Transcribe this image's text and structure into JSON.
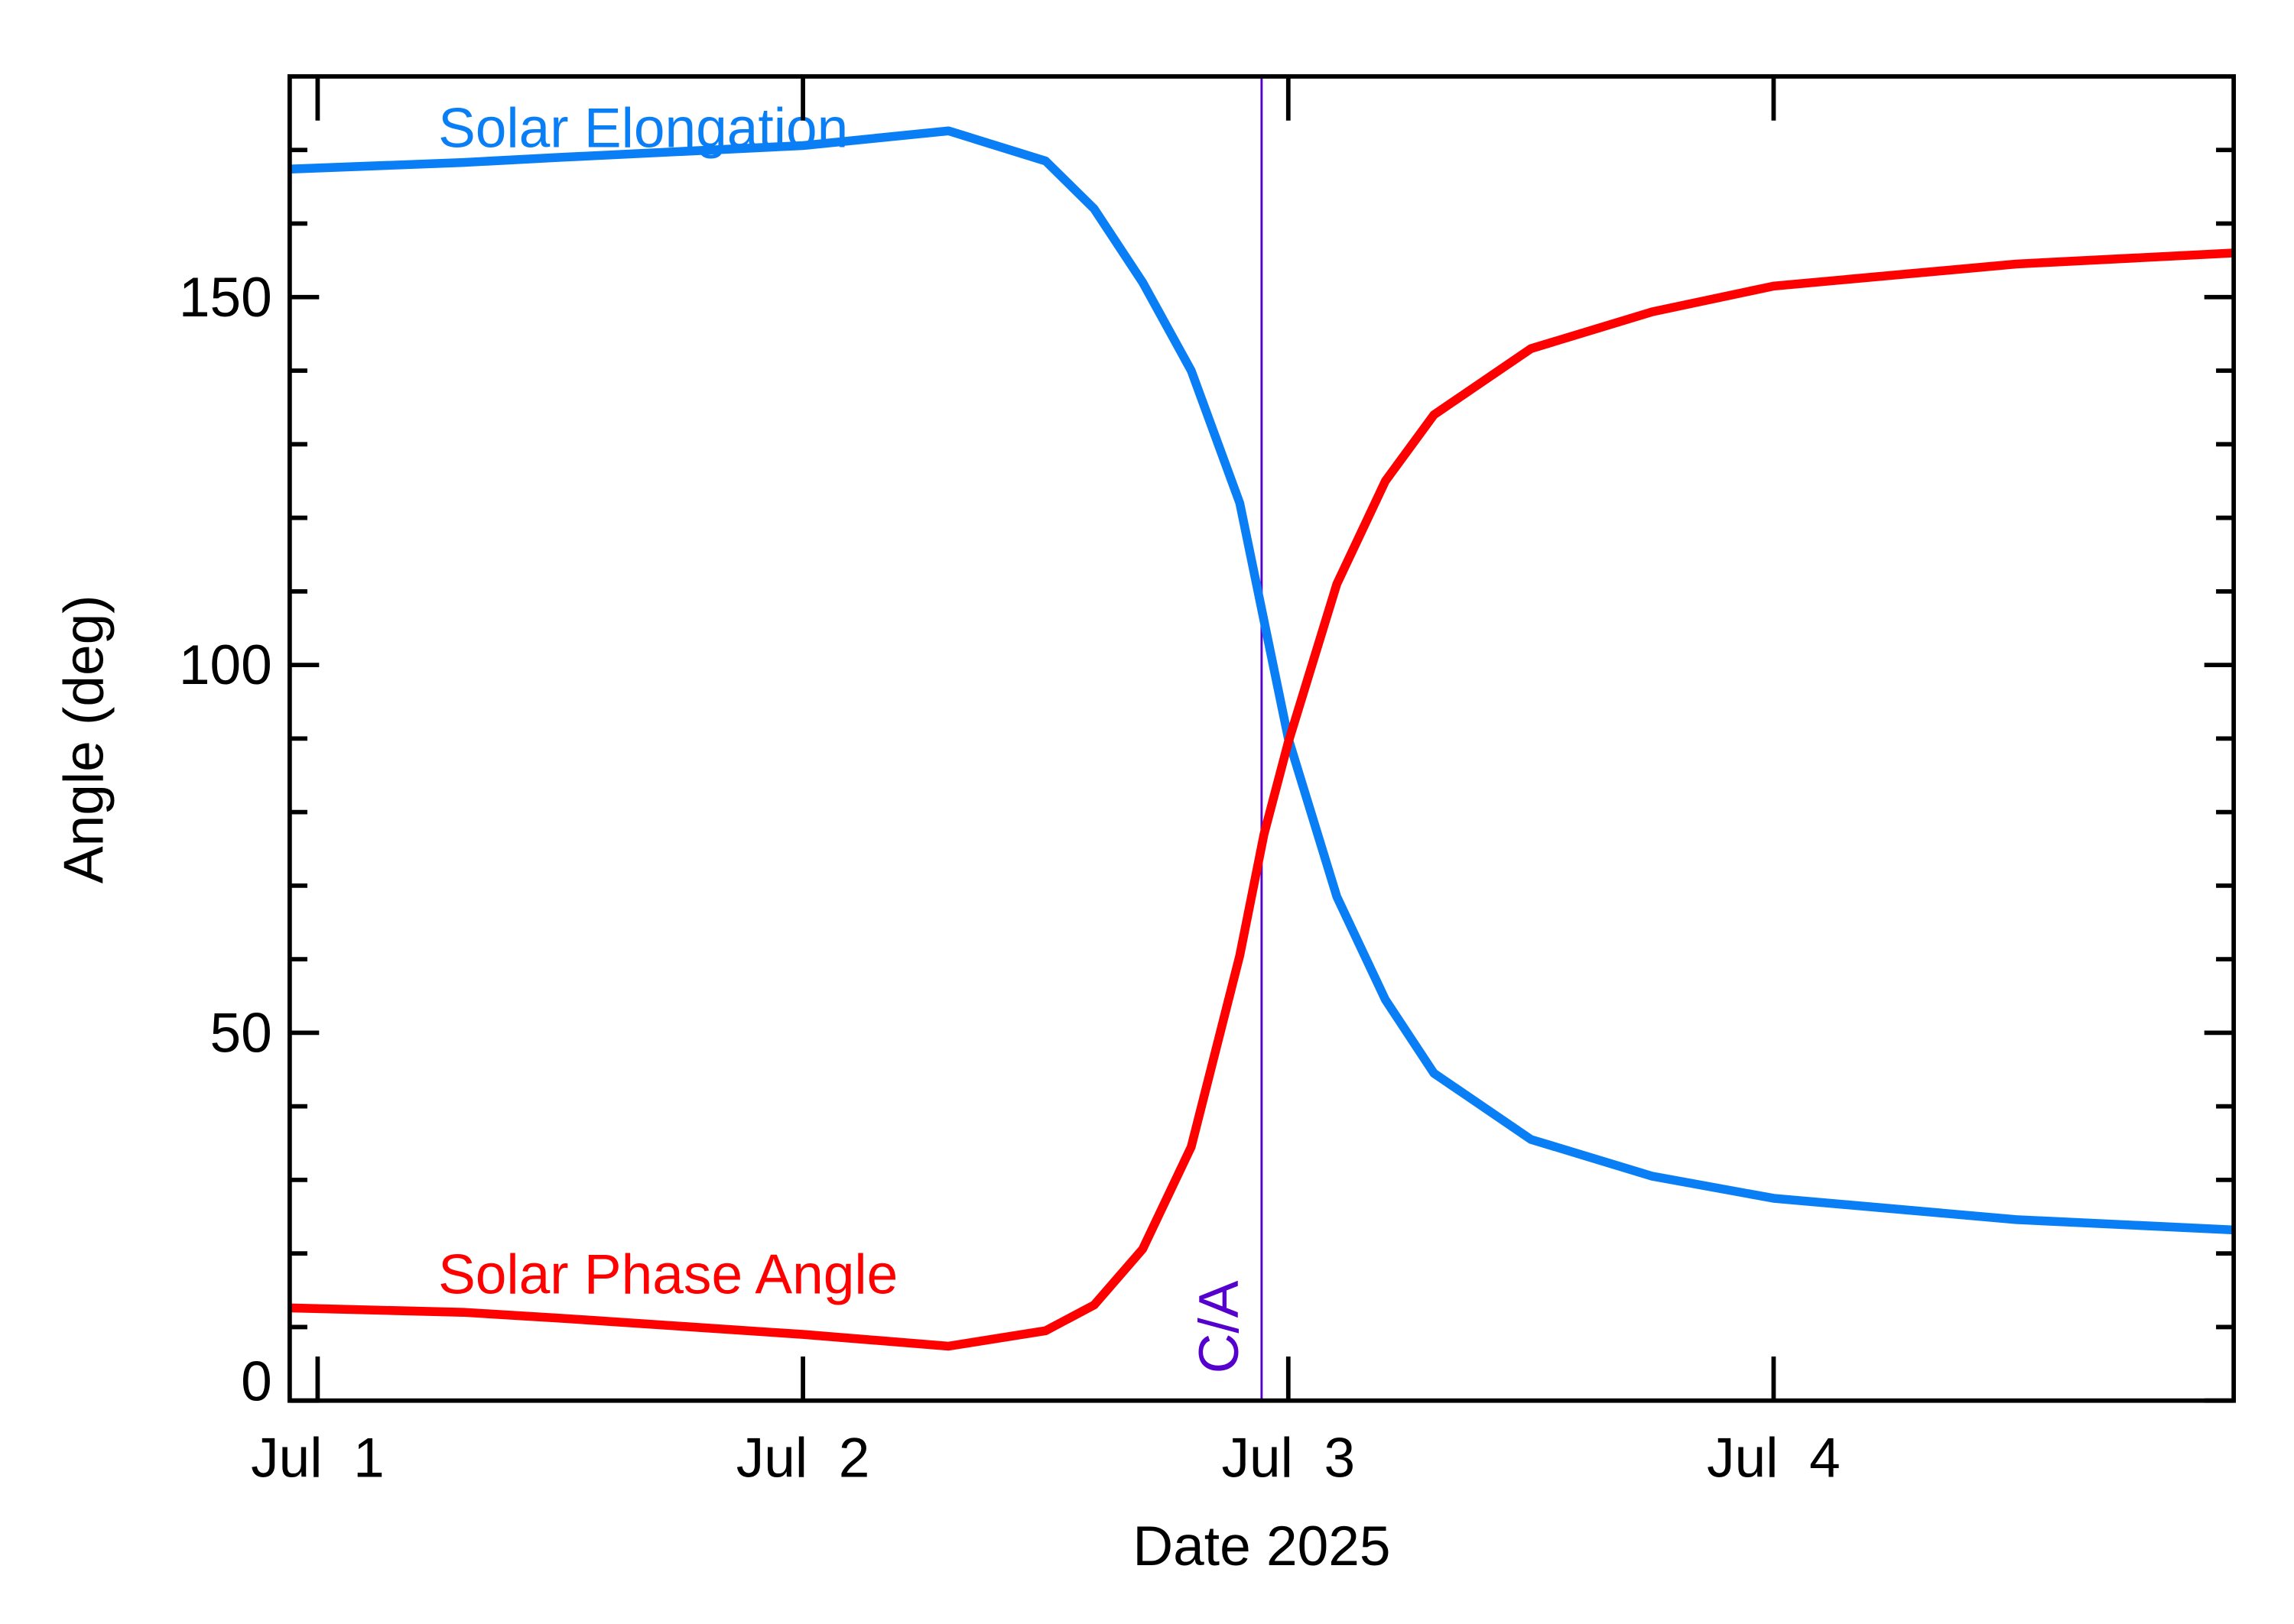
{
  "chart_data": {
    "type": "line",
    "x_label": "Date 2025",
    "y_label": "Angle (deg)",
    "xlim": [
      -0.0576,
      3.948
    ],
    "xticks": [
      {
        "value": 0,
        "label": "Jul  1"
      },
      {
        "value": 1,
        "label": "Jul  2"
      },
      {
        "value": 2,
        "label": "Jul  3"
      },
      {
        "value": 3,
        "label": "Jul  4"
      }
    ],
    "ylim": [
      0,
      180
    ],
    "yticks": [
      0,
      50,
      100,
      150
    ],
    "y_minor_ticks": [
      10,
      20,
      30,
      40,
      60,
      70,
      80,
      90,
      110,
      120,
      130,
      140,
      160,
      170
    ],
    "x": [
      -0.0576,
      0.3,
      0.5,
      1.0,
      1.3,
      1.5,
      1.6,
      1.7,
      1.8,
      1.9,
      1.95,
      2.0,
      2.1,
      2.2,
      2.3,
      2.5,
      2.75,
      3.0,
      3.5,
      3.948
    ],
    "series": [
      {
        "name": "Solar Elongation",
        "color": "#0a7ff5",
        "values": [
          167.4,
          168.3,
          169.0,
          170.6,
          172.6,
          168.5,
          162,
          152,
          140,
          122,
          106,
          90,
          68.5,
          54.5,
          44.5,
          35.5,
          30.5,
          27.5,
          24.6,
          23.2
        ]
      },
      {
        "name": "Solar Phase Angle",
        "color": "#ff0000",
        "values": [
          12.6,
          12.0,
          11.2,
          9.0,
          7.4,
          9.5,
          13,
          20.6,
          34.5,
          60.5,
          77,
          89.5,
          111,
          125,
          134,
          143,
          148,
          151.5,
          154.5,
          156
        ]
      }
    ],
    "markers": [
      {
        "x": 1.945,
        "label": "C/A",
        "color": "#5500cc"
      }
    ]
  }
}
